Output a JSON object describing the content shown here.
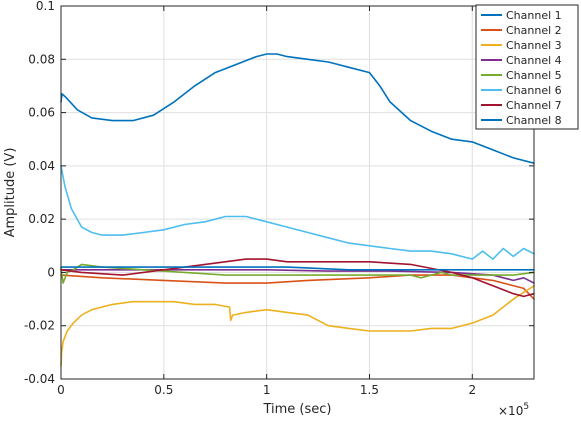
{
  "chart_data": {
    "type": "line",
    "xlabel": "Time (sec)",
    "ylabel": "Amplitude (V)",
    "xlim": [
      0,
      230000
    ],
    "ylim": [
      -0.04,
      0.1
    ],
    "x_exponent_label": "×10",
    "x_exponent_power": "5",
    "xticks": [
      0,
      50000,
      100000,
      150000,
      200000
    ],
    "xtick_labels": [
      "0",
      "0.5",
      "1",
      "1.5",
      "2"
    ],
    "yticks": [
      -0.04,
      -0.02,
      0,
      0.02,
      0.04,
      0.06,
      0.08,
      0.1
    ],
    "ytick_labels": [
      "-0.04",
      "-0.02",
      "0",
      "0.02",
      "0.04",
      "0.06",
      "0.08",
      "0.1"
    ],
    "grid": true,
    "legend_position": "top-right",
    "series": [
      {
        "name": "Channel 1",
        "color": "#0072BD",
        "x": [
          0,
          500,
          2000,
          8000,
          15000,
          25000,
          35000,
          45000,
          55000,
          65000,
          75000,
          85000,
          95000,
          100000,
          105000,
          110000,
          120000,
          130000,
          135000,
          140000,
          150000,
          155000,
          160000,
          170000,
          180000,
          190000,
          200000,
          210000,
          220000,
          230000
        ],
        "values": [
          0.064,
          0.067,
          0.066,
          0.061,
          0.058,
          0.057,
          0.057,
          0.059,
          0.064,
          0.07,
          0.075,
          0.078,
          0.081,
          0.082,
          0.082,
          0.081,
          0.08,
          0.079,
          0.078,
          0.077,
          0.075,
          0.07,
          0.064,
          0.057,
          0.053,
          0.05,
          0.049,
          0.046,
          0.043,
          0.041
        ]
      },
      {
        "name": "Channel 2",
        "color": "#D95319",
        "x": [
          0,
          20000,
          50000,
          80000,
          100000,
          120000,
          150000,
          170000,
          190000,
          210000,
          225000,
          230000
        ],
        "values": [
          -0.001,
          -0.002,
          -0.003,
          -0.004,
          -0.004,
          -0.003,
          -0.002,
          -0.001,
          -0.001,
          -0.003,
          -0.006,
          -0.01
        ]
      },
      {
        "name": "Channel 3",
        "color": "#EDB120",
        "x": [
          0,
          300,
          1000,
          3000,
          6000,
          10000,
          15000,
          25000,
          35000,
          45000,
          55000,
          65000,
          75000,
          82000,
          82500,
          83500,
          90000,
          100000,
          110000,
          120000,
          125000,
          130000,
          140000,
          150000,
          160000,
          170000,
          180000,
          190000,
          200000,
          210000,
          220000,
          230000
        ],
        "values": [
          -0.035,
          -0.03,
          -0.026,
          -0.022,
          -0.019,
          -0.016,
          -0.014,
          -0.012,
          -0.011,
          -0.011,
          -0.011,
          -0.012,
          -0.012,
          -0.013,
          -0.018,
          -0.016,
          -0.015,
          -0.014,
          -0.015,
          -0.016,
          -0.018,
          -0.02,
          -0.021,
          -0.022,
          -0.022,
          -0.022,
          -0.021,
          -0.021,
          -0.019,
          -0.016,
          -0.01,
          -0.005
        ]
      },
      {
        "name": "Channel 4",
        "color": "#7E2F8E",
        "x": [
          0,
          20000,
          50000,
          80000,
          100000,
          130000,
          160000,
          190000,
          210000,
          220000,
          225000,
          230000
        ],
        "values": [
          0.001,
          0.001,
          0.001,
          0.001,
          0.001,
          0.0005,
          0.0005,
          0.0,
          -0.001,
          -0.003,
          -0.002,
          -0.004
        ]
      },
      {
        "name": "Channel 5",
        "color": "#77AC30",
        "x": [
          0,
          1000,
          3000,
          6000,
          10000,
          20000,
          40000,
          60000,
          80000,
          100000,
          120000,
          130000,
          140000,
          150000,
          160000,
          170000,
          175000,
          180000,
          185000,
          190000,
          200000,
          210000,
          220000,
          230000
        ],
        "values": [
          0.002,
          -0.004,
          0.0,
          0.001,
          0.003,
          0.002,
          0.001,
          0.0,
          -0.001,
          -0.001,
          -0.001,
          -0.001,
          -0.001,
          -0.001,
          -0.001,
          -0.001,
          -0.002,
          -0.001,
          0.0,
          -0.001,
          -0.001,
          -0.001,
          -0.001,
          0.0
        ]
      },
      {
        "name": "Channel 6",
        "color": "#4DBEEE",
        "x": [
          0,
          2000,
          5000,
          10000,
          15000,
          20000,
          30000,
          40000,
          50000,
          60000,
          70000,
          80000,
          90000,
          100000,
          110000,
          120000,
          130000,
          140000,
          150000,
          160000,
          170000,
          180000,
          190000,
          200000,
          205000,
          210000,
          215000,
          220000,
          225000,
          230000
        ],
        "values": [
          0.04,
          0.032,
          0.024,
          0.017,
          0.015,
          0.014,
          0.014,
          0.015,
          0.016,
          0.018,
          0.019,
          0.021,
          0.021,
          0.019,
          0.017,
          0.015,
          0.013,
          0.011,
          0.01,
          0.009,
          0.008,
          0.008,
          0.007,
          0.005,
          0.008,
          0.005,
          0.009,
          0.006,
          0.009,
          0.007
        ]
      },
      {
        "name": "Channel 7",
        "color": "#A2142F",
        "x": [
          0,
          10000,
          30000,
          50000,
          70000,
          90000,
          100000,
          110000,
          130000,
          150000,
          170000,
          190000,
          200000,
          210000,
          220000,
          225000,
          230000
        ],
        "values": [
          0.001,
          0.0,
          -0.001,
          0.001,
          0.003,
          0.005,
          0.005,
          0.004,
          0.004,
          0.004,
          0.003,
          0.0,
          -0.002,
          -0.005,
          -0.008,
          -0.009,
          -0.008
        ]
      },
      {
        "name": "Channel 8",
        "color": "#0072BD",
        "x": [
          0,
          20000,
          50000,
          80000,
          110000,
          140000,
          170000,
          200000,
          230000
        ],
        "values": [
          0.002,
          0.002,
          0.002,
          0.002,
          0.002,
          0.001,
          0.001,
          0.001,
          0.001
        ]
      }
    ]
  }
}
